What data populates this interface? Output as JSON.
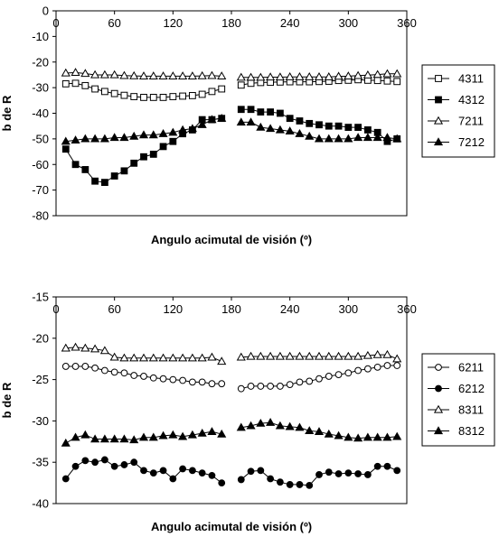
{
  "chart_data": [
    {
      "type": "line",
      "xlabel": "Angulo acimutal de visión (º)",
      "ylabel": "b de R",
      "xlim": [
        0,
        360
      ],
      "ylim": [
        -80,
        0
      ],
      "xticks": [
        "0",
        "60",
        "120",
        "180",
        "240",
        "300",
        "360"
      ],
      "yticks": [
        "0",
        "-10",
        "-20",
        "-30",
        "-40",
        "-50",
        "-60",
        "-70",
        "-80"
      ],
      "grid": false,
      "legend": "right",
      "x": [
        10,
        20,
        30,
        40,
        50,
        60,
        70,
        80,
        90,
        100,
        110,
        120,
        130,
        140,
        150,
        160,
        170,
        190,
        200,
        210,
        220,
        230,
        240,
        250,
        260,
        270,
        280,
        290,
        300,
        310,
        320,
        330,
        340,
        350
      ],
      "series": [
        {
          "name": "4311",
          "marker": "open-square",
          "values": [
            -28.5,
            -28.3,
            -29.2,
            -30.5,
            -31.5,
            -32.3,
            -33,
            -33.5,
            -33.8,
            -33.8,
            -33.8,
            -33.5,
            -33.3,
            -33.1,
            -32.6,
            -31.5,
            -30.5,
            -29,
            -28.3,
            -28,
            -27.9,
            -27.8,
            -27.7,
            -27.7,
            -27.7,
            -27.6,
            -27.5,
            -27.2,
            -27.1,
            -26.9,
            -27.1,
            -27.2,
            -27.4,
            -27.6
          ]
        },
        {
          "name": "4312",
          "marker": "filled-square",
          "values": [
            -54,
            -60,
            -62,
            -66.5,
            -67,
            -64.5,
            -62.5,
            -59.5,
            -57,
            -56,
            -53,
            -51,
            -48,
            -46.5,
            -42.5,
            -42.5,
            -42,
            -38.5,
            -38.5,
            -39.5,
            -39.5,
            -40,
            -42,
            -43,
            -44,
            -44.5,
            -45,
            -45,
            -45.5,
            -45.5,
            -46.5,
            -47.5,
            -51,
            -50
          ]
        },
        {
          "name": "7211",
          "marker": "open-triangle",
          "values": [
            -24.3,
            -24.1,
            -24.5,
            -25,
            -25,
            -25,
            -25.3,
            -25.4,
            -25.5,
            -25.5,
            -25.5,
            -25.5,
            -25.5,
            -25.5,
            -25.4,
            -25.3,
            -25.5,
            -26,
            -26,
            -26,
            -25.9,
            -25.9,
            -25.8,
            -25.8,
            -25.8,
            -25.8,
            -25.8,
            -25.6,
            -25.5,
            -25.3,
            -25.1,
            -24.9,
            -24.6,
            -24.6
          ]
        },
        {
          "name": "7212",
          "marker": "filled-triangle",
          "values": [
            -51,
            -50.5,
            -50,
            -50,
            -50,
            -49.5,
            -49.5,
            -49,
            -48.5,
            -48.5,
            -48,
            -47.5,
            -46.5,
            -46,
            -44.5,
            -42.5,
            -42,
            -43.5,
            -43.5,
            -45.5,
            -46,
            -46.5,
            -47,
            -48,
            -49,
            -50,
            -50,
            -50,
            -50,
            -49.5,
            -49.5,
            -49.5,
            -49.5,
            -50
          ]
        }
      ]
    },
    {
      "type": "line",
      "xlabel": "Angulo acimutal de visión (º)",
      "ylabel": "b de R",
      "xlim": [
        0,
        360
      ],
      "ylim": [
        -40,
        -15
      ],
      "xticks": [
        "0",
        "60",
        "120",
        "180",
        "240",
        "300",
        "360"
      ],
      "yticks": [
        "-15",
        "-20",
        "-25",
        "-30",
        "-35",
        "-40"
      ],
      "grid": false,
      "legend": "right",
      "x": [
        10,
        20,
        30,
        40,
        50,
        60,
        70,
        80,
        90,
        100,
        110,
        120,
        130,
        140,
        150,
        160,
        170,
        190,
        200,
        210,
        220,
        230,
        240,
        250,
        260,
        270,
        280,
        290,
        300,
        310,
        320,
        330,
        340,
        350
      ],
      "series": [
        {
          "name": "6211",
          "marker": "open-circle",
          "values": [
            -23.4,
            -23.4,
            -23.4,
            -23.6,
            -23.9,
            -24.1,
            -24.2,
            -24.5,
            -24.6,
            -24.8,
            -24.9,
            -25,
            -25.1,
            -25.3,
            -25.3,
            -25.5,
            -25.5,
            -26.1,
            -25.8,
            -25.8,
            -25.8,
            -25.8,
            -25.6,
            -25.3,
            -25.2,
            -24.9,
            -24.6,
            -24.4,
            -24.2,
            -23.9,
            -23.7,
            -23.5,
            -23.3,
            -23.3
          ]
        },
        {
          "name": "6212",
          "marker": "filled-circle",
          "values": [
            -37,
            -35.5,
            -34.8,
            -35,
            -34.7,
            -35.5,
            -35.3,
            -35,
            -36,
            -36.3,
            -36,
            -37,
            -35.8,
            -36,
            -36.3,
            -36.6,
            -37.5,
            -37.1,
            -36.1,
            -36,
            -37,
            -37.4,
            -37.7,
            -37.7,
            -37.8,
            -36.5,
            -36.2,
            -36.4,
            -36.3,
            -36.4,
            -36.5,
            -35.5,
            -35.5,
            -36
          ]
        },
        {
          "name": "8311",
          "marker": "open-triangle",
          "values": [
            -21.2,
            -21.1,
            -21.2,
            -21.3,
            -21.5,
            -22.3,
            -22.4,
            -22.4,
            -22.4,
            -22.4,
            -22.4,
            -22.4,
            -22.4,
            -22.4,
            -22.4,
            -22.3,
            -22.8,
            -22.3,
            -22.2,
            -22.2,
            -22.2,
            -22.2,
            -22.2,
            -22.2,
            -22.2,
            -22.2,
            -22.2,
            -22.2,
            -22.2,
            -22.2,
            -22.1,
            -22.0,
            -22.0,
            -22.5
          ]
        },
        {
          "name": "8312",
          "marker": "filled-triangle",
          "values": [
            -32.7,
            -32,
            -31.7,
            -32.2,
            -32.2,
            -32.2,
            -32.2,
            -32.3,
            -32,
            -32,
            -31.8,
            -31.7,
            -31.9,
            -31.7,
            -31.5,
            -31.3,
            -31.6,
            -30.8,
            -30.6,
            -30.3,
            -30.2,
            -30.6,
            -30.7,
            -30.8,
            -31.2,
            -31.3,
            -31.6,
            -31.8,
            -32,
            -32.1,
            -32,
            -32,
            -32,
            -31.9
          ]
        }
      ]
    }
  ]
}
